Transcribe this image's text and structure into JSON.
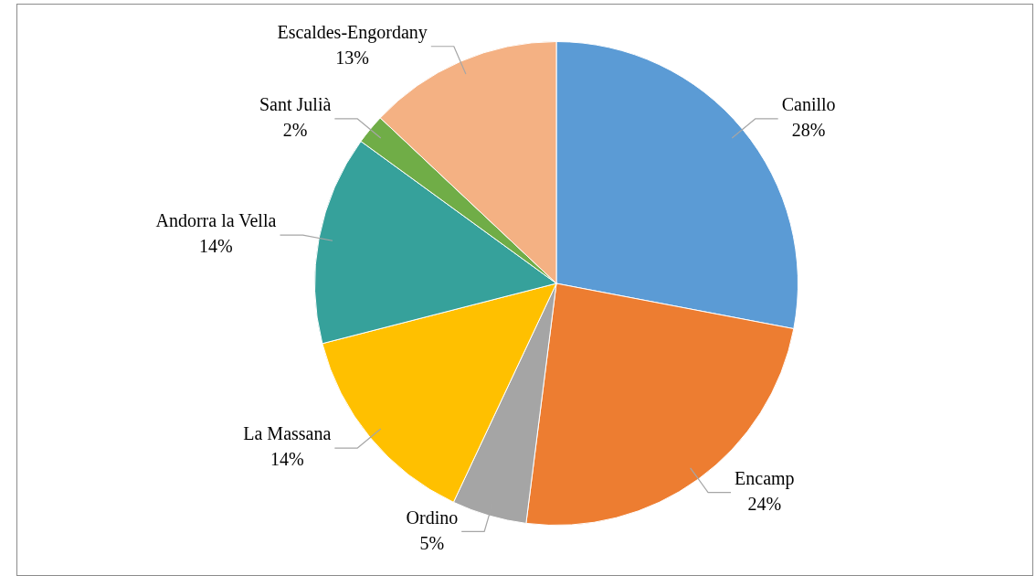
{
  "chart_data": {
    "type": "pie",
    "categories": [
      "Canillo",
      "Encamp",
      "Ordino",
      "La Massana",
      "Andorra la Vella",
      "Sant Julià",
      "Escaldes-Engordany"
    ],
    "values": [
      28,
      24,
      5,
      14,
      14,
      2,
      13
    ],
    "value_labels": [
      "28%",
      "24%",
      "5%",
      "14%",
      "14%",
      "2%",
      "13%"
    ],
    "colors": [
      "#5b9bd5",
      "#ed7d31",
      "#a5a5a5",
      "#ffc000",
      "#36a19b",
      "#70ad47",
      "#f4b183"
    ],
    "legend": false
  }
}
